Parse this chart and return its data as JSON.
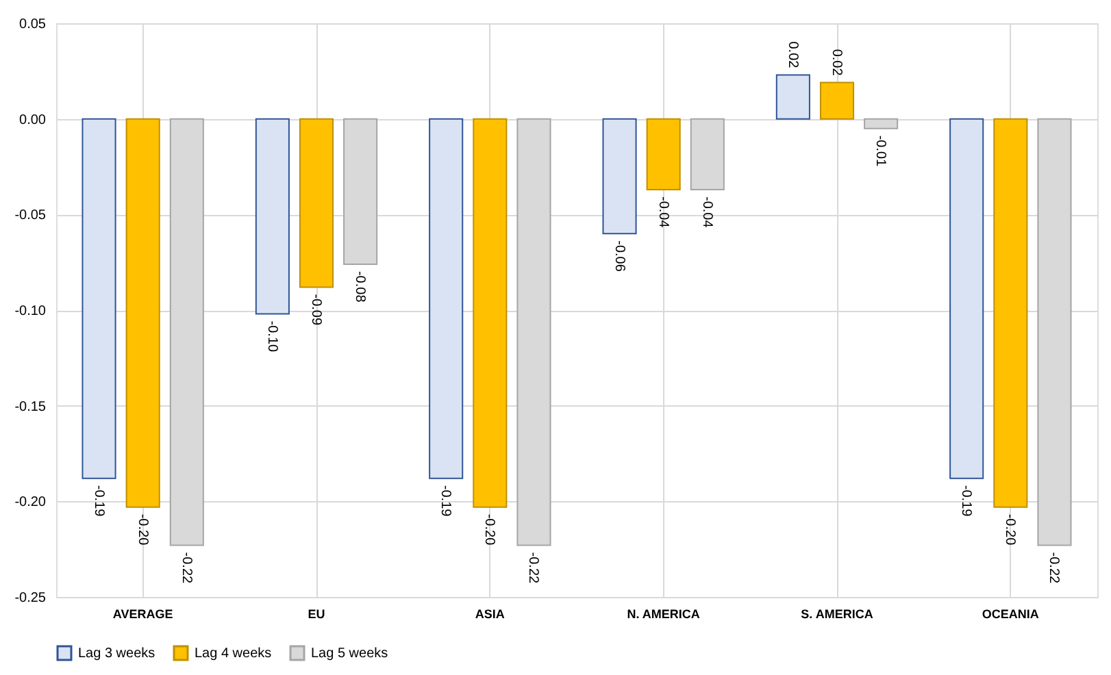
{
  "chart_data": {
    "type": "bar",
    "categories": [
      "AVERAGE",
      "EU",
      "ASIA",
      "N. AMERICA",
      "S. AMERICA",
      "OCEANIA"
    ],
    "series": [
      {
        "name": "Lag 3 weeks",
        "color": "#dae3f3",
        "values": [
          -0.188,
          -0.102,
          -0.188,
          -0.06,
          0.023,
          -0.188
        ],
        "value_labels": [
          "-0.19",
          "-0.10",
          "-0.19",
          "-0.06",
          "0.02",
          "-0.19"
        ]
      },
      {
        "name": "Lag 4 weeks",
        "color": "#ffc000",
        "values": [
          -0.203,
          -0.088,
          -0.203,
          -0.037,
          0.019,
          -0.203
        ],
        "value_labels": [
          "-0.20",
          "-0.09",
          "-0.20",
          "-0.04",
          "0.02",
          "-0.20"
        ]
      },
      {
        "name": "Lag 5 weeks",
        "color": "#d9d9d9",
        "values": [
          -0.223,
          -0.076,
          -0.223,
          -0.037,
          -0.005,
          -0.223
        ],
        "value_labels": [
          "-0.22",
          "-0.08",
          "-0.22",
          "-0.04",
          "-0.01",
          "-0.22"
        ]
      }
    ],
    "ylim": [
      -0.25,
      0.05
    ],
    "yticks": [
      {
        "value": 0.05,
        "label": "0.05"
      },
      {
        "value": 0,
        "label": "0.00"
      },
      {
        "value": -0.05,
        "label": "-0.05"
      },
      {
        "value": -0.1,
        "label": "-0.10"
      },
      {
        "value": -0.15,
        "label": "-0.15"
      },
      {
        "value": -0.2,
        "label": "-0.20"
      },
      {
        "value": -0.25,
        "label": "-0.25"
      }
    ],
    "grid": true,
    "legend": "bottom"
  }
}
